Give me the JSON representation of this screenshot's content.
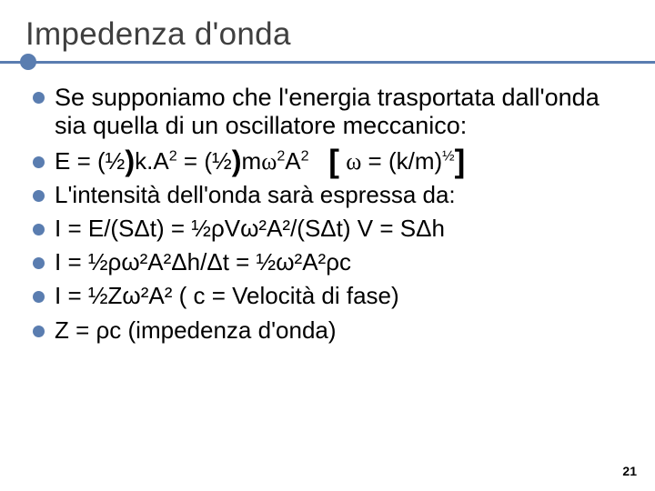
{
  "accent_color": "#5a7db0",
  "text_color": "#000000",
  "title_color": "#3f3f3f",
  "background_color": "#ffffff",
  "title": "Impedenza d'onda",
  "page_number": "21",
  "bullets": {
    "intro": "Se supponiamo che  l'energia trasportata dall'onda sia quella di un oscillatore meccanico:",
    "l1_a": "E  = (",
    "l1_b": "k.A",
    "l1_c": " = (",
    "l1_d": "m",
    "l1_e": "A",
    "l1_f": " = (k/m)",
    "half": "½",
    "two": "2",
    "close_paren": ")",
    "omega": "ω",
    "open_br": "[",
    "close_br": "]",
    "l2": "L'intensità dell'onda sarà espressa da:",
    "l3": "I = E/(SΔt) = ½ρVω²A²/(SΔt)    V = SΔh",
    "l4": "I = ½ρω²A²Δh/Δt = ½ω²A²ρc",
    "l5": "I = ½Zω²A²      ( c = Velocità di fase)",
    "l6": "Z = ρc    (impedenza d'onda)"
  }
}
